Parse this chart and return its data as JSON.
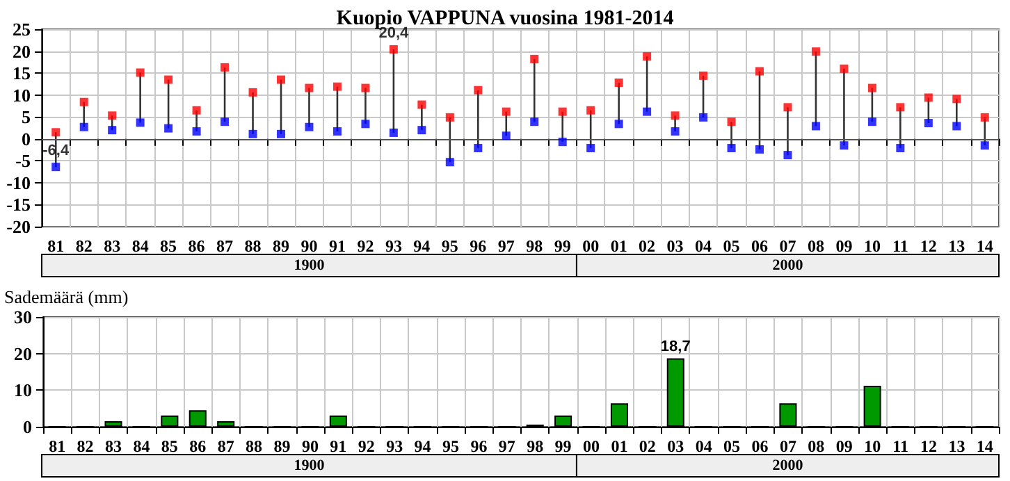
{
  "chart_data": [
    {
      "type": "scatter",
      "title": "Kuopio VAPPUNA vuosina 1981-2014",
      "categories": [
        "81",
        "82",
        "83",
        "84",
        "85",
        "86",
        "87",
        "88",
        "89",
        "90",
        "91",
        "92",
        "93",
        "94",
        "95",
        "96",
        "97",
        "98",
        "99",
        "00",
        "01",
        "02",
        "03",
        "04",
        "05",
        "06",
        "07",
        "08",
        "09",
        "10",
        "11",
        "12",
        "13",
        "14"
      ],
      "series": [
        {
          "color": "#ff0000",
          "values": [
            1.5,
            8.4,
            5.3,
            15.1,
            13.5,
            6.5,
            16.3,
            10.6,
            13.5,
            11.6,
            11.9,
            11.6,
            20.4,
            7.8,
            4.9,
            11.1,
            6.2,
            18.2,
            6.2,
            6.5,
            12.8,
            18.8,
            5.3,
            14.4,
            3.9,
            15.4,
            7.2,
            19.9,
            16.0,
            11.6,
            7.2,
            9.4,
            9.1,
            4.9
          ],
          "value_labels": [
            null,
            null,
            null,
            null,
            null,
            null,
            null,
            null,
            null,
            null,
            null,
            null,
            "20,4",
            null,
            null,
            null,
            null,
            null,
            null,
            null,
            null,
            null,
            null,
            null,
            null,
            null,
            null,
            null,
            null,
            null,
            null,
            null,
            null,
            null
          ]
        },
        {
          "color": "#0000ff",
          "values": [
            -6.4,
            2.7,
            2.0,
            3.7,
            2.4,
            1.7,
            3.9,
            1.1,
            1.1,
            2.7,
            1.7,
            3.4,
            1.4,
            2.0,
            -5.3,
            -2.1,
            0.7,
            3.9,
            -0.7,
            -2.1,
            3.4,
            6.2,
            1.7,
            4.9,
            -2.1,
            -2.4,
            -3.7,
            2.9,
            -1.5,
            3.9,
            -2.1,
            3.6,
            2.9,
            -1.5
          ],
          "value_labels": [
            "-6,4",
            null,
            null,
            null,
            null,
            null,
            null,
            null,
            null,
            null,
            null,
            null,
            null,
            null,
            null,
            null,
            null,
            null,
            null,
            null,
            null,
            null,
            null,
            null,
            null,
            null,
            null,
            null,
            null,
            null,
            null,
            null,
            null,
            null
          ]
        }
      ],
      "ylim": [
        -20,
        25
      ],
      "yticks": [
        -20,
        -15,
        -10,
        -5,
        0,
        5,
        10,
        15,
        20,
        25
      ],
      "grid": true,
      "marker": "square",
      "annotations": [
        "1900",
        "2000"
      ]
    },
    {
      "type": "bar",
      "ylabel": "Sademäärä (mm)",
      "categories": [
        "81",
        "82",
        "83",
        "84",
        "85",
        "86",
        "87",
        "88",
        "89",
        "90",
        "91",
        "92",
        "93",
        "94",
        "95",
        "96",
        "97",
        "98",
        "99",
        "00",
        "01",
        "02",
        "03",
        "04",
        "05",
        "06",
        "07",
        "08",
        "09",
        "10",
        "11",
        "12",
        "13",
        "14"
      ],
      "series": [
        {
          "color": "#009900",
          "values": [
            0,
            0,
            1.5,
            0,
            3.1,
            4.5,
            1.5,
            0,
            0,
            0,
            3.1,
            0,
            0,
            0,
            0,
            0,
            0,
            0.6,
            3.1,
            0,
            6.4,
            0,
            18.7,
            0,
            0,
            0,
            6.4,
            0,
            0,
            11.2,
            0,
            0,
            0,
            0
          ],
          "value_labels": [
            null,
            null,
            null,
            null,
            null,
            null,
            null,
            null,
            null,
            null,
            null,
            null,
            null,
            null,
            null,
            null,
            null,
            null,
            null,
            null,
            null,
            null,
            "18,7",
            null,
            null,
            null,
            null,
            null,
            null,
            null,
            null,
            null,
            null,
            null
          ]
        }
      ],
      "ylim": [
        0,
        30
      ],
      "yticks": [
        0,
        10,
        20,
        30
      ],
      "grid": true,
      "annotations": [
        "1900",
        "2000"
      ]
    }
  ]
}
